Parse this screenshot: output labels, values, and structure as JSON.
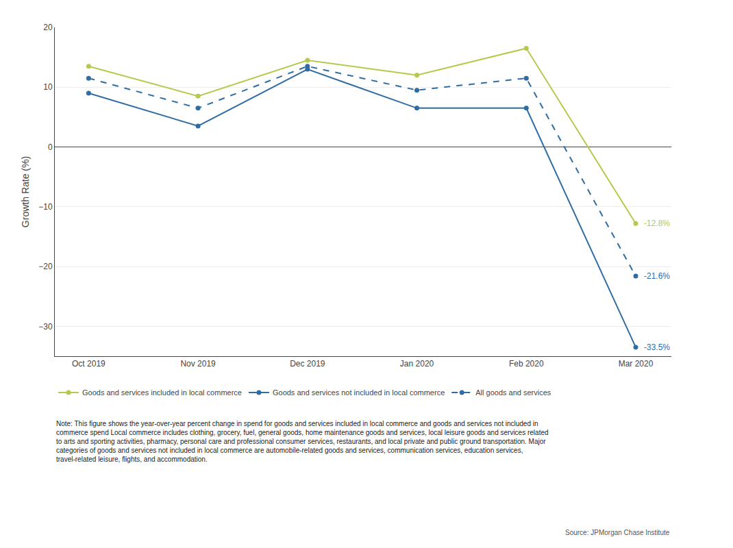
{
  "chart_data": {
    "type": "line",
    "categories": [
      "Oct 2019",
      "Nov 2019",
      "Dec 2019",
      "Jan 2020",
      "Feb 2020",
      "Mar 2020"
    ],
    "series": [
      {
        "name": "Goods and services included in local commerce",
        "color": "#b5c94c",
        "line_style": "solid",
        "marker": "circle",
        "values": [
          13.5,
          8.5,
          14.5,
          12.0,
          16.5,
          -12.8
        ]
      },
      {
        "name": "Goods and services not included in local commerce",
        "color": "#2e6da4",
        "line_style": "solid",
        "marker": "circle",
        "values": [
          9.0,
          3.5,
          13.0,
          6.5,
          6.5,
          -33.5
        ]
      },
      {
        "name": "All goods and services",
        "color": "#2e6da4",
        "line_style": "dashed",
        "marker": "circle",
        "values": [
          11.5,
          6.5,
          13.5,
          9.5,
          11.5,
          -21.6
        ]
      }
    ],
    "annotations": [
      {
        "text": "-12.8%",
        "series": "Goods and services included in local commerce"
      },
      {
        "text": "-21.6%",
        "series": "All goods and services"
      },
      {
        "text": "-33.5%",
        "series": "Goods and services not included in local commerce"
      }
    ],
    "ylabel": "Growth Rate (%)",
    "ylim": [
      -35,
      20
    ],
    "yticks": [
      20,
      10,
      0,
      {
        "value": -10,
        "label": "−10"
      },
      {
        "value": -20,
        "label": "−20"
      },
      {
        "value": -30,
        "label": "−30"
      }
    ],
    "grid": true,
    "legend": "bottom",
    "note": "Note: This figure shows the year-over-year percent change in spend for goods and services included in local commerce and goods and services not included in\ncommerce spend Local commerce includes clothing, grocery, fuel, general goods, home maintenance goods and services, local leisure goods and services related\nto arts and sporting activities, pharmacy, personal care and professional consumer services, restaurants, and local private and public ground transportation. Major\ncategories of goods and services not included in local commerce are automobile-related goods and services, communication services, education services,\ntravel-related leisure, flights, and accommodation.",
    "source": "Source: JPMorgan Chase Institute"
  }
}
